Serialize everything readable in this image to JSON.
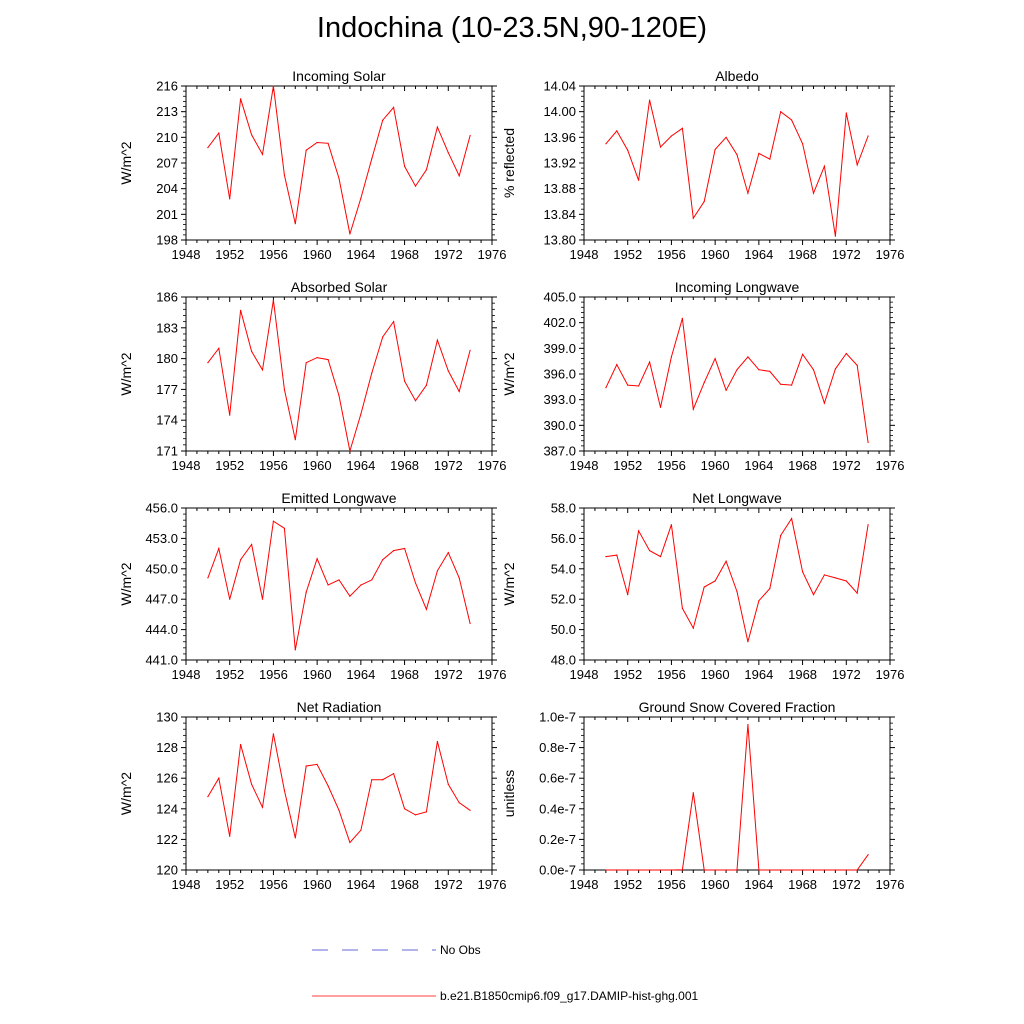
{
  "title": "Indochina (10-23.5N,90-120E)",
  "legend": [
    {
      "label": "No Obs",
      "color": "#3333cc",
      "style": "dashed"
    },
    {
      "label": "b.e21.B1850cmip6.f09_g17.DAMIP-hist-ghg.001",
      "color": "#ff0000",
      "style": "solid"
    }
  ],
  "chart_data": [
    {
      "type": "line",
      "title": "Incoming Solar",
      "ylabel": "W/m^2",
      "xlim": [
        1948,
        1976
      ],
      "ylim": [
        198,
        216
      ],
      "xticks": [
        "1948",
        "1952",
        "1956",
        "1960",
        "1964",
        "1968",
        "1972",
        "1976"
      ],
      "yticks": [
        "198",
        "201",
        "204",
        "207",
        "210",
        "213",
        "216"
      ],
      "series": [
        {
          "color": "#ff0000",
          "x": [
            1950,
            1951,
            1952,
            1953,
            1954,
            1955,
            1956,
            1957,
            1958,
            1959,
            1960,
            1961,
            1962,
            1963,
            1964,
            1965,
            1966,
            1967,
            1968,
            1969,
            1970,
            1971,
            1972,
            1973,
            1974
          ],
          "values": [
            208.8,
            210.5,
            202.8,
            214.5,
            210.3,
            208.0,
            216.0,
            205.6,
            199.9,
            208.5,
            209.4,
            209.3,
            205.2,
            198.7,
            202.9,
            207.5,
            212.0,
            213.5,
            206.6,
            204.3,
            206.2,
            211.2,
            208.2,
            205.5,
            210.2
          ]
        }
      ]
    },
    {
      "type": "line",
      "title": "Albedo",
      "ylabel": "% reflected",
      "xlim": [
        1948,
        1976
      ],
      "ylim": [
        13.8,
        14.04
      ],
      "xticks": [
        "1948",
        "1952",
        "1956",
        "1960",
        "1964",
        "1968",
        "1972",
        "1976"
      ],
      "yticks": [
        "13.80",
        "13.84",
        "13.88",
        "13.92",
        "13.96",
        "14.00",
        "14.04"
      ],
      "series": [
        {
          "color": "#ff0000",
          "x": [
            1950,
            1951,
            1952,
            1953,
            1954,
            1955,
            1956,
            1957,
            1958,
            1959,
            1960,
            1961,
            1962,
            1963,
            1964,
            1965,
            1966,
            1967,
            1968,
            1969,
            1970,
            1971,
            1972,
            1973,
            1974
          ],
          "values": [
            13.95,
            13.97,
            13.94,
            13.893,
            14.018,
            13.945,
            13.962,
            13.974,
            13.834,
            13.86,
            13.941,
            13.96,
            13.933,
            13.873,
            13.935,
            13.926,
            14.0,
            13.987,
            13.95,
            13.873,
            13.915,
            13.806,
            13.998,
            13.917,
            13.962
          ]
        }
      ]
    },
    {
      "type": "line",
      "title": "Absorbed Solar",
      "ylabel": "W/m^2",
      "xlim": [
        1948,
        1976
      ],
      "ylim": [
        171,
        186
      ],
      "xticks": [
        "1948",
        "1952",
        "1956",
        "1960",
        "1964",
        "1968",
        "1972",
        "1976"
      ],
      "yticks": [
        "171",
        "174",
        "177",
        "180",
        "183",
        "186"
      ],
      "series": [
        {
          "color": "#ff0000",
          "x": [
            1950,
            1951,
            1952,
            1953,
            1954,
            1955,
            1956,
            1957,
            1958,
            1959,
            1960,
            1961,
            1962,
            1963,
            1964,
            1965,
            1966,
            1967,
            1968,
            1969,
            1970,
            1971,
            1972,
            1973,
            1974
          ],
          "values": [
            179.6,
            181.0,
            174.5,
            184.7,
            180.7,
            178.9,
            185.7,
            177.0,
            172.1,
            179.6,
            180.1,
            179.9,
            176.4,
            171.0,
            174.6,
            178.6,
            182.1,
            183.6,
            177.8,
            175.9,
            177.4,
            181.8,
            178.8,
            176.8,
            180.8
          ]
        }
      ]
    },
    {
      "type": "line",
      "title": "Incoming Longwave",
      "ylabel": "W/m^2",
      "xlim": [
        1948,
        1976
      ],
      "ylim": [
        387.0,
        405.0
      ],
      "xticks": [
        "1948",
        "1952",
        "1956",
        "1960",
        "1964",
        "1968",
        "1972",
        "1976"
      ],
      "yticks": [
        "387.0",
        "390.0",
        "393.0",
        "396.0",
        "399.0",
        "402.0",
        "405.0"
      ],
      "series": [
        {
          "color": "#ff0000",
          "x": [
            1950,
            1951,
            1952,
            1953,
            1954,
            1955,
            1956,
            1957,
            1958,
            1959,
            1960,
            1961,
            1962,
            1963,
            1964,
            1965,
            1966,
            1967,
            1968,
            1969,
            1970,
            1971,
            1972,
            1973,
            1974
          ],
          "values": [
            394.4,
            397.1,
            394.7,
            394.6,
            397.4,
            392.1,
            398.0,
            402.5,
            391.9,
            395.0,
            397.8,
            394.1,
            396.5,
            398.0,
            396.5,
            396.3,
            394.8,
            394.7,
            398.3,
            396.5,
            392.6,
            396.6,
            398.4,
            397.0,
            388.0
          ]
        }
      ]
    },
    {
      "type": "line",
      "title": "Emitted Longwave",
      "ylabel": "W/m^2",
      "xlim": [
        1948,
        1976
      ],
      "ylim": [
        441.0,
        456.0
      ],
      "xticks": [
        "1948",
        "1952",
        "1956",
        "1960",
        "1964",
        "1968",
        "1972",
        "1976"
      ],
      "yticks": [
        "441.0",
        "444.0",
        "447.0",
        "450.0",
        "453.0",
        "456.0"
      ],
      "series": [
        {
          "color": "#ff0000",
          "x": [
            1950,
            1951,
            1952,
            1953,
            1954,
            1955,
            1956,
            1957,
            1958,
            1959,
            1960,
            1961,
            1962,
            1963,
            1964,
            1965,
            1966,
            1967,
            1968,
            1969,
            1970,
            1971,
            1972,
            1973,
            1974
          ],
          "values": [
            449.1,
            452.0,
            447.0,
            450.9,
            452.4,
            447.0,
            454.7,
            454.0,
            442.0,
            447.7,
            451.0,
            448.4,
            448.9,
            447.3,
            448.4,
            448.9,
            450.9,
            451.8,
            452.0,
            448.6,
            446.0,
            449.8,
            451.6,
            449.1,
            444.6
          ]
        }
      ]
    },
    {
      "type": "line",
      "title": "Net Longwave",
      "ylabel": "W/m^2",
      "xlim": [
        1948,
        1976
      ],
      "ylim": [
        48.0,
        58.0
      ],
      "xticks": [
        "1948",
        "1952",
        "1956",
        "1960",
        "1964",
        "1968",
        "1972",
        "1976"
      ],
      "yticks": [
        "48.0",
        "50.0",
        "52.0",
        "54.0",
        "56.0",
        "58.0"
      ],
      "series": [
        {
          "color": "#ff0000",
          "x": [
            1950,
            1951,
            1952,
            1953,
            1954,
            1955,
            1956,
            1957,
            1958,
            1959,
            1960,
            1961,
            1962,
            1963,
            1964,
            1965,
            1966,
            1967,
            1968,
            1969,
            1970,
            1971,
            1972,
            1973,
            1974
          ],
          "values": [
            54.8,
            54.9,
            52.3,
            56.5,
            55.2,
            54.8,
            56.9,
            51.4,
            50.1,
            52.8,
            53.2,
            54.5,
            52.5,
            49.2,
            51.9,
            52.7,
            56.2,
            57.3,
            53.8,
            52.3,
            53.6,
            53.4,
            53.2,
            52.4,
            56.9
          ]
        }
      ]
    },
    {
      "type": "line",
      "title": "Net Radiation",
      "ylabel": "W/m^2",
      "xlim": [
        1948,
        1976
      ],
      "ylim": [
        120,
        130
      ],
      "xticks": [
        "1948",
        "1952",
        "1956",
        "1960",
        "1964",
        "1968",
        "1972",
        "1976"
      ],
      "yticks": [
        "120",
        "122",
        "124",
        "126",
        "128",
        "130"
      ],
      "series": [
        {
          "color": "#ff0000",
          "x": [
            1950,
            1951,
            1952,
            1953,
            1954,
            1955,
            1956,
            1957,
            1958,
            1959,
            1960,
            1961,
            1962,
            1963,
            1964,
            1965,
            1966,
            1967,
            1968,
            1969,
            1970,
            1971,
            1972,
            1973,
            1974
          ],
          "values": [
            124.8,
            126.0,
            122.2,
            128.2,
            125.6,
            124.1,
            128.9,
            125.2,
            122.1,
            126.8,
            126.9,
            125.5,
            123.9,
            121.8,
            122.6,
            125.9,
            125.9,
            126.3,
            124.0,
            123.6,
            123.8,
            128.4,
            125.6,
            124.4,
            123.9
          ]
        }
      ]
    },
    {
      "type": "line",
      "title": "Ground Snow Covered Fraction",
      "ylabel": "unitless",
      "xlim": [
        1948,
        1976
      ],
      "ylim": [
        0,
        1e-07
      ],
      "xticks": [
        "1948",
        "1952",
        "1956",
        "1960",
        "1964",
        "1968",
        "1972",
        "1976"
      ],
      "yticks": [
        "0.0e-7",
        "0.2e-7",
        "0.4e-7",
        "0.6e-7",
        "0.8e-7",
        "1.0e-7"
      ],
      "series": [
        {
          "color": "#ff0000",
          "x": [
            1950,
            1951,
            1952,
            1953,
            1954,
            1955,
            1956,
            1957,
            1958,
            1959,
            1960,
            1961,
            1962,
            1963,
            1964,
            1965,
            1966,
            1967,
            1968,
            1969,
            1970,
            1971,
            1972,
            1973,
            1974
          ],
          "values": [
            0,
            0,
            0,
            0,
            0,
            0,
            0,
            1.5e-10,
            5.05e-08,
            0,
            0,
            0,
            0,
            9.5e-08,
            0,
            0,
            0,
            0,
            0,
            0,
            0,
            0,
            0,
            0,
            1e-08
          ]
        }
      ]
    }
  ]
}
